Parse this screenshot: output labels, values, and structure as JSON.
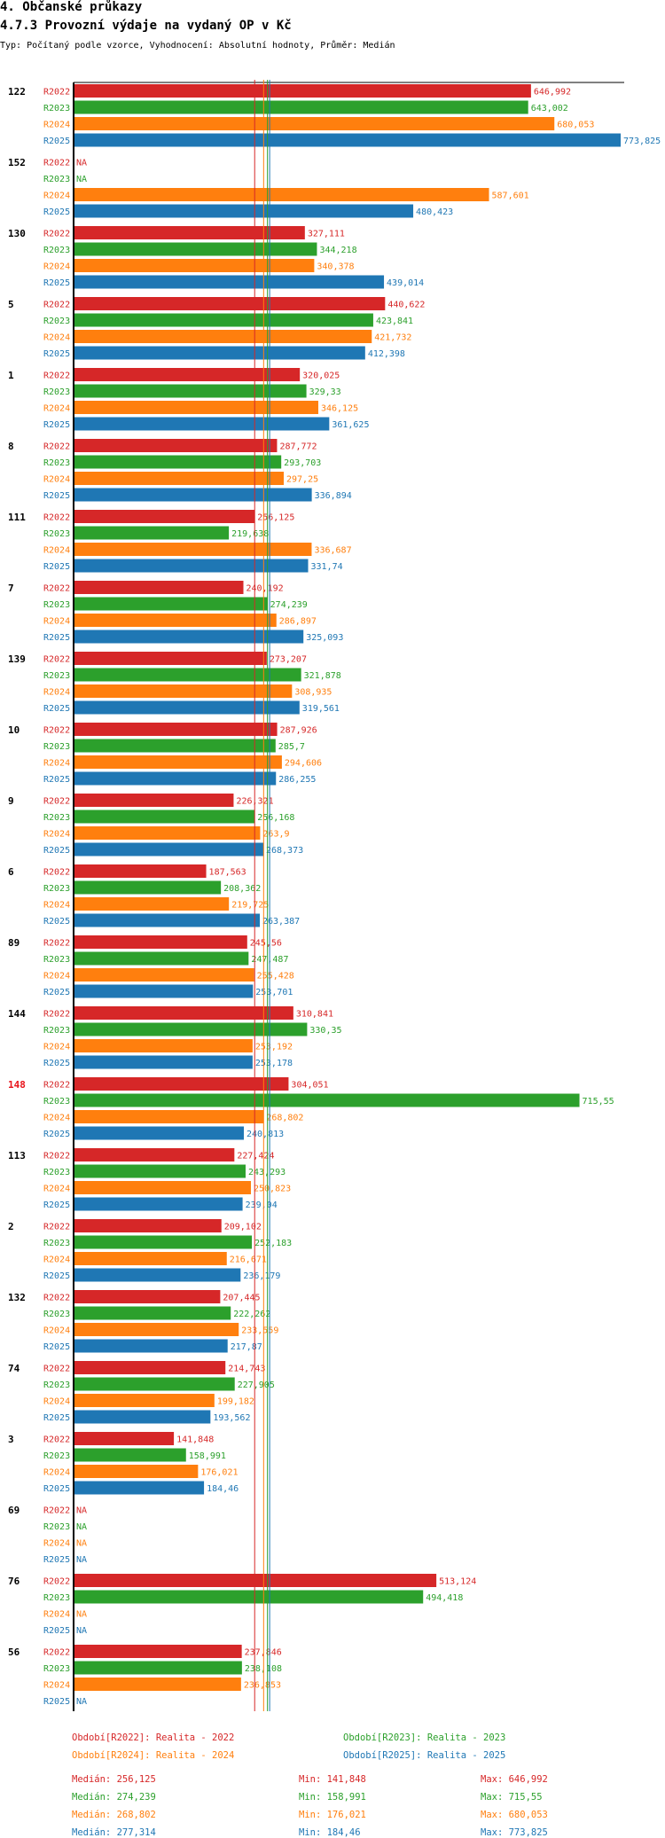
{
  "header": {
    "section": "4. Občanské průkazy",
    "title": "4.7.3 Provozní výdaje na vydaný OP v Kč",
    "subtitle": "Typ: Počítaný podle vzorce, Vyhodnocení: Absolutní hodnoty, Průměr: Medián"
  },
  "colors": {
    "R2022": "#d62728",
    "R2023": "#2ca02c",
    "R2024": "#ff7f0e",
    "R2025": "#1f77b4",
    "highlight": "#e8141b",
    "axis": "#000000"
  },
  "chart_data": {
    "type": "bar",
    "orientation": "horizontal",
    "title": "4.7.3 Provozní výdaje na vydaný OP v Kč",
    "series_names": [
      "R2022",
      "R2023",
      "R2024",
      "R2025"
    ],
    "xlim": [
      0,
      773.825
    ],
    "highlighted_category": "148",
    "categories": [
      {
        "label": "122",
        "values": [
          646.992,
          643.002,
          680.053,
          773.825
        ],
        "display": [
          "646,992",
          "643,002",
          "680,053",
          "773,825"
        ]
      },
      {
        "label": "152",
        "values": [
          null,
          null,
          587.601,
          480.423
        ],
        "display": [
          "NA",
          "NA",
          "587,601",
          "480,423"
        ]
      },
      {
        "label": "130",
        "values": [
          327.111,
          344.218,
          340.378,
          439.014
        ],
        "display": [
          "327,111",
          "344,218",
          "340,378",
          "439,014"
        ]
      },
      {
        "label": "5",
        "values": [
          440.622,
          423.841,
          421.732,
          412.398
        ],
        "display": [
          "440,622",
          "423,841",
          "421,732",
          "412,398"
        ]
      },
      {
        "label": "1",
        "values": [
          320.025,
          329.33,
          346.125,
          361.625
        ],
        "display": [
          "320,025",
          "329,33",
          "346,125",
          "361,625"
        ]
      },
      {
        "label": "8",
        "values": [
          287.772,
          293.703,
          297.25,
          336.894
        ],
        "display": [
          "287,772",
          "293,703",
          "297,25",
          "336,894"
        ]
      },
      {
        "label": "111",
        "values": [
          256.125,
          219.638,
          336.687,
          331.74
        ],
        "display": [
          "256,125",
          "219,638",
          "336,687",
          "331,74"
        ]
      },
      {
        "label": "7",
        "values": [
          240.192,
          274.239,
          286.897,
          325.093
        ],
        "display": [
          "240,192",
          "274,239",
          "286,897",
          "325,093"
        ]
      },
      {
        "label": "139",
        "values": [
          273.207,
          321.878,
          308.935,
          319.561
        ],
        "display": [
          "273,207",
          "321,878",
          "308,935",
          "319,561"
        ]
      },
      {
        "label": "10",
        "values": [
          287.926,
          285.7,
          294.606,
          286.255
        ],
        "display": [
          "287,926",
          "285,7",
          "294,606",
          "286,255"
        ]
      },
      {
        "label": "9",
        "values": [
          226.321,
          256.168,
          263.9,
          268.373
        ],
        "display": [
          "226,321",
          "256,168",
          "263,9",
          "268,373"
        ]
      },
      {
        "label": "6",
        "values": [
          187.563,
          208.362,
          219.725,
          263.387
        ],
        "display": [
          "187,563",
          "208,362",
          "219,725",
          "263,387"
        ]
      },
      {
        "label": "89",
        "values": [
          245.56,
          247.487,
          255.428,
          253.701
        ],
        "display": [
          "245,56",
          "247,487",
          "255,428",
          "253,701"
        ]
      },
      {
        "label": "144",
        "values": [
          310.841,
          330.35,
          253.192,
          253.178
        ],
        "display": [
          "310,841",
          "330,35",
          "253,192",
          "253,178"
        ]
      },
      {
        "label": "148",
        "values": [
          304.051,
          715.55,
          268.802,
          240.813
        ],
        "display": [
          "304,051",
          "715,55",
          "268,802",
          "240,813"
        ]
      },
      {
        "label": "113",
        "values": [
          227.424,
          243.293,
          250.823,
          239.04
        ],
        "display": [
          "227,424",
          "243,293",
          "250,823",
          "239,04"
        ]
      },
      {
        "label": "2",
        "values": [
          209.102,
          252.183,
          216.671,
          236.179
        ],
        "display": [
          "209,102",
          "252,183",
          "216,671",
          "236,179"
        ]
      },
      {
        "label": "132",
        "values": [
          207.445,
          222.262,
          233.559,
          217.87
        ],
        "display": [
          "207,445",
          "222,262",
          "233,559",
          "217,87"
        ]
      },
      {
        "label": "74",
        "values": [
          214.743,
          227.905,
          199.182,
          193.562
        ],
        "display": [
          "214,743",
          "227,905",
          "199,182",
          "193,562"
        ]
      },
      {
        "label": "3",
        "values": [
          141.848,
          158.991,
          176.021,
          184.46
        ],
        "display": [
          "141,848",
          "158,991",
          "176,021",
          "184,46"
        ]
      },
      {
        "label": "69",
        "values": [
          null,
          null,
          null,
          null
        ],
        "display": [
          "NA",
          "NA",
          "NA",
          "NA"
        ]
      },
      {
        "label": "76",
        "values": [
          513.124,
          494.418,
          null,
          null
        ],
        "display": [
          "513,124",
          "494,418",
          "NA",
          "NA"
        ]
      },
      {
        "label": "56",
        "values": [
          237.846,
          238.108,
          236.853,
          null
        ],
        "display": [
          "237,846",
          "238,108",
          "236,853",
          "NA"
        ]
      }
    ],
    "medians": [
      256.125,
      274.239,
      268.802,
      277.314
    ]
  },
  "legend": {
    "periods": [
      "Období[R2022]: Realita - 2022",
      "Období[R2023]: Realita - 2023",
      "Období[R2024]: Realita - 2024",
      "Období[R2025]: Realita - 2025"
    ],
    "stats": [
      {
        "median": "Medián: 256,125",
        "min": "Min: 141,848",
        "max": "Max: 646,992"
      },
      {
        "median": "Medián: 274,239",
        "min": "Min: 158,991",
        "max": "Max: 715,55"
      },
      {
        "median": "Medián: 268,802",
        "min": "Min: 176,021",
        "max": "Max: 680,053"
      },
      {
        "median": "Medián: 277,314",
        "min": "Min: 184,46",
        "max": "Max: 773,825"
      }
    ]
  }
}
